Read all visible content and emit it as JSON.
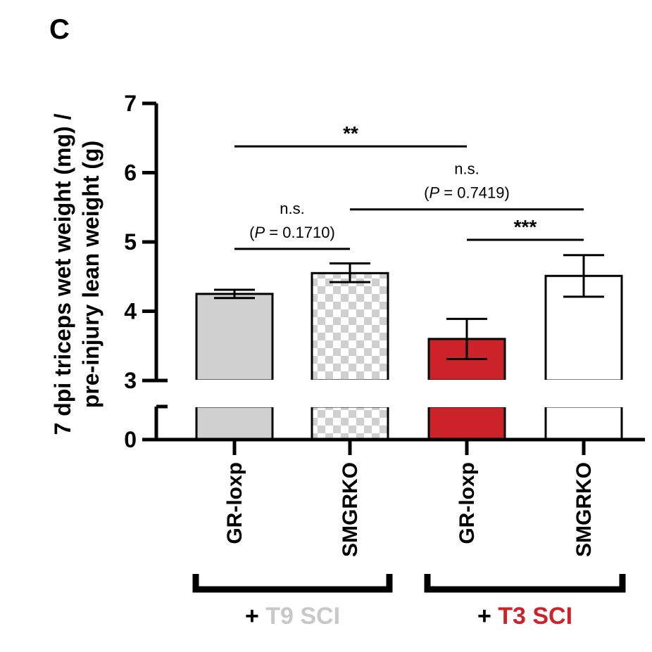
{
  "panel_label": "C",
  "colors": {
    "gr_loxp_t9": "#d0d0d0",
    "smgrko_t9_check_a": "#ffffff",
    "smgrko_t9_check_b": "#cfcfcf",
    "gr_loxp_t3": "#cc2229",
    "smgrko_t3": "#ffffff",
    "t9_label": "#c8c8c8",
    "t3_label": "#cc2229",
    "axis": "#000000"
  },
  "chart_data": {
    "type": "bar",
    "ylabel_line1": "7 dpi triceps wet weight (mg) /",
    "ylabel_line2": "pre-injury lean weight (g)",
    "y_axis_broken": true,
    "ylim_lower": [
      0,
      0.5
    ],
    "ylim_upper": [
      3,
      7
    ],
    "yticks": [
      "0",
      "3",
      "4",
      "5",
      "6",
      "7"
    ],
    "categories": [
      "GR-loxp",
      "SMGRKO",
      "GR-loxp",
      "SMGRKO"
    ],
    "values": [
      4.25,
      4.55,
      3.6,
      4.51
    ],
    "errors": [
      {
        "low": 4.19,
        "high": 4.31
      },
      {
        "low": 4.42,
        "high": 4.69
      },
      {
        "low": 3.31,
        "high": 3.89
      },
      {
        "low": 4.21,
        "high": 4.81
      }
    ],
    "bar_fills": [
      "solid-grey",
      "checker-grey",
      "solid-red",
      "white"
    ],
    "groups": [
      {
        "prefix": "+",
        "name": "T9 SCI",
        "bars": [
          0,
          1
        ]
      },
      {
        "prefix": "+",
        "name": "T3 SCI",
        "bars": [
          2,
          3
        ]
      }
    ],
    "significance": [
      {
        "from": 0,
        "to": 2,
        "label": "**",
        "y": 6.38
      },
      {
        "from": 0,
        "to": 1,
        "label": "n.s.",
        "p_prefix": "(",
        "p_symbol": "P",
        "p_value": " = 0.1710)",
        "y": 4.9
      },
      {
        "from": 1,
        "to": 3,
        "label": "n.s.",
        "p_prefix": "(",
        "p_symbol": "P",
        "p_value": " = 0.7419)",
        "y": 5.47
      },
      {
        "from": 2,
        "to": 3,
        "label": "***",
        "y": 5.03
      }
    ]
  }
}
